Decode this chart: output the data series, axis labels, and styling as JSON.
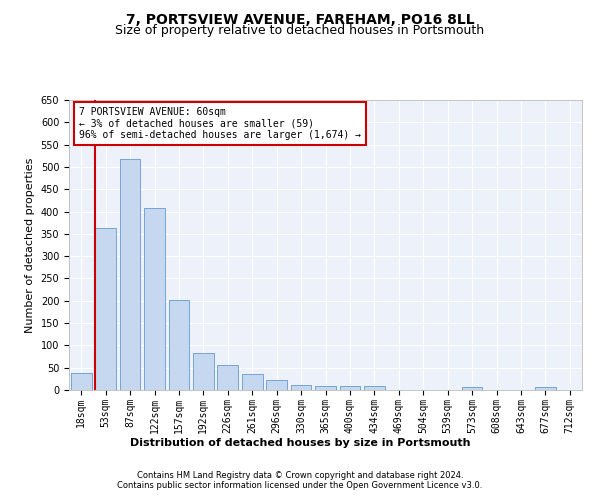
{
  "title": "7, PORTSVIEW AVENUE, FAREHAM, PO16 8LL",
  "subtitle": "Size of property relative to detached houses in Portsmouth",
  "xlabel": "Distribution of detached houses by size in Portsmouth",
  "ylabel": "Number of detached properties",
  "categories": [
    "18sqm",
    "53sqm",
    "87sqm",
    "122sqm",
    "157sqm",
    "192sqm",
    "226sqm",
    "261sqm",
    "296sqm",
    "330sqm",
    "365sqm",
    "400sqm",
    "434sqm",
    "469sqm",
    "504sqm",
    "539sqm",
    "573sqm",
    "608sqm",
    "643sqm",
    "677sqm",
    "712sqm"
  ],
  "values": [
    38,
    363,
    518,
    408,
    202,
    83,
    55,
    35,
    22,
    12,
    9,
    9,
    9,
    0,
    0,
    0,
    7,
    0,
    0,
    7,
    0
  ],
  "bar_color": "#c5d8f0",
  "bar_edge_color": "#6699cc",
  "vline_color": "#cc0000",
  "annotation_text": "7 PORTSVIEW AVENUE: 60sqm\n← 3% of detached houses are smaller (59)\n96% of semi-detached houses are larger (1,674) →",
  "annotation_box_color": "#ffffff",
  "annotation_box_edge": "#cc0000",
  "ylim": [
    0,
    650
  ],
  "yticks": [
    0,
    50,
    100,
    150,
    200,
    250,
    300,
    350,
    400,
    450,
    500,
    550,
    600,
    650
  ],
  "footer1": "Contains HM Land Registry data © Crown copyright and database right 2024.",
  "footer2": "Contains public sector information licensed under the Open Government Licence v3.0.",
  "bg_color": "#edf2fa",
  "title_fontsize": 10,
  "subtitle_fontsize": 9,
  "ylabel_fontsize": 8,
  "tick_fontsize": 7,
  "footer_fontsize": 6,
  "xlabel_fontsize": 8
}
